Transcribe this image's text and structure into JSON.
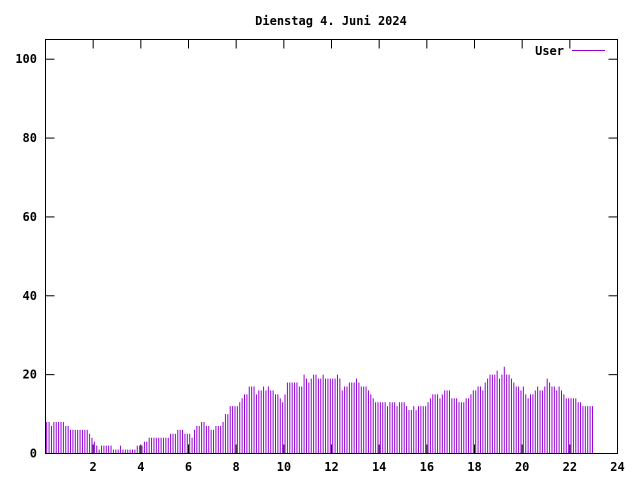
{
  "chart_data": {
    "type": "bar",
    "title": "Dienstag 4. Juni 2024",
    "xlabel": "",
    "ylabel": "",
    "xlim": [
      0,
      24
    ],
    "ylim": [
      0,
      105
    ],
    "x_ticks": [
      2,
      4,
      6,
      8,
      10,
      12,
      14,
      16,
      18,
      20,
      22,
      24
    ],
    "x_tick_labels": [
      "2",
      "4",
      "6",
      "8",
      "10",
      "12",
      "14",
      "16",
      "18",
      "20",
      "22",
      "24"
    ],
    "y_ticks": [
      0,
      20,
      40,
      60,
      80,
      100
    ],
    "y_tick_labels": [
      "0",
      "20",
      "40",
      "60",
      "80",
      "100"
    ],
    "grid": false,
    "legend_position": "top-right",
    "series": [
      {
        "name": "User",
        "color": "#9400d3",
        "x_step_hours": 0.1,
        "values": [
          8,
          8,
          7,
          8,
          8,
          8,
          8,
          8,
          7,
          7,
          6,
          6,
          6,
          6,
          6,
          6,
          6,
          6,
          5,
          4,
          3,
          2,
          1,
          2,
          2,
          2,
          2,
          2,
          1,
          1,
          1,
          2,
          1,
          1,
          1,
          1,
          1,
          1,
          2,
          2,
          2,
          3,
          3,
          4,
          4,
          4,
          4,
          4,
          4,
          4,
          4,
          4,
          5,
          5,
          5,
          6,
          6,
          6,
          5,
          5,
          5,
          4,
          6,
          7,
          7,
          8,
          8,
          7,
          7,
          6,
          6,
          7,
          7,
          7,
          8,
          10,
          10,
          12,
          12,
          12,
          12,
          13,
          14,
          15,
          15,
          17,
          17,
          17,
          15,
          16,
          16,
          17,
          16,
          17,
          16,
          16,
          15,
          15,
          14,
          13,
          15,
          18,
          18,
          18,
          18,
          18,
          17,
          17,
          20,
          19,
          18,
          19,
          20,
          20,
          19,
          19,
          20,
          19,
          19,
          19,
          19,
          19,
          20,
          19,
          16,
          17,
          17,
          18,
          18,
          18,
          19,
          18,
          17,
          17,
          17,
          16,
          15,
          14,
          13,
          13,
          13,
          13,
          13,
          12,
          13,
          13,
          13,
          12,
          13,
          13,
          13,
          12,
          11,
          11,
          12,
          11,
          12,
          12,
          12,
          12,
          13,
          14,
          15,
          15,
          15,
          14,
          15,
          16,
          16,
          16,
          14,
          14,
          14,
          13,
          13,
          13,
          14,
          14,
          15,
          16,
          16,
          17,
          17,
          16,
          18,
          19,
          20,
          20,
          20,
          21,
          19,
          20,
          22,
          20,
          20,
          19,
          18,
          17,
          17,
          16,
          17,
          15,
          14,
          15,
          15,
          16,
          17,
          16,
          16,
          17,
          19,
          18,
          17,
          17,
          16,
          17,
          16,
          15,
          14,
          14,
          14,
          14,
          14,
          13,
          13,
          12,
          12,
          12,
          12,
          12
        ]
      }
    ]
  }
}
